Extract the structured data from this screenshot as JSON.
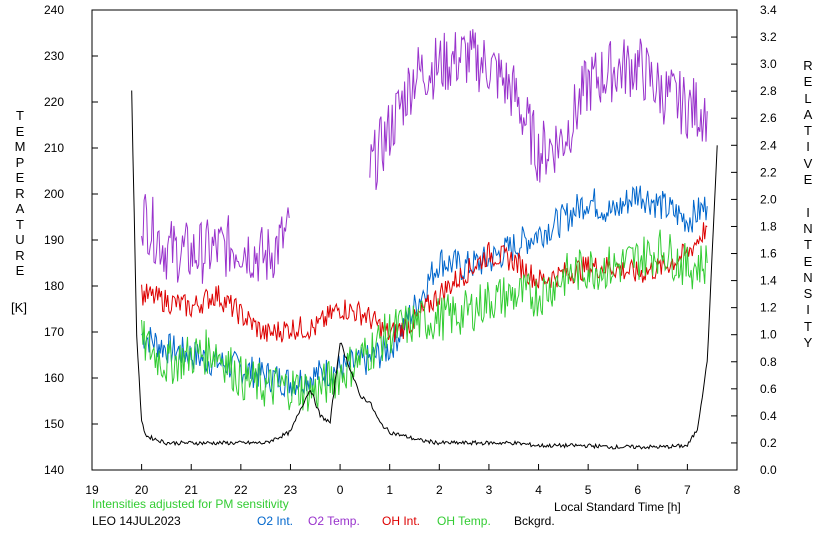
{
  "chart_data": {
    "type": "line",
    "xlabel": "Local Standard Time [h]",
    "ylabel_left_letters": [
      "T",
      "E",
      "M",
      "P",
      "E",
      "R",
      "A",
      "T",
      "U",
      "R",
      "E"
    ],
    "ylabel_left_unit": "[K]",
    "ylabel_right_letters": [
      "R",
      "E",
      "L",
      "A",
      "T",
      "I",
      "V",
      "E",
      "",
      "I",
      "N",
      "T",
      "E",
      "N",
      "S",
      "I",
      "T",
      "Y"
    ],
    "xlim": [
      19,
      32
    ],
    "x_tick_values": [
      19,
      20,
      21,
      22,
      23,
      24,
      25,
      26,
      27,
      28,
      29,
      30,
      31,
      32
    ],
    "x_tick_labels": [
      "19",
      "20",
      "21",
      "22",
      "23",
      "0",
      "1",
      "2",
      "3",
      "4",
      "5",
      "6",
      "7",
      "8"
    ],
    "ylim_left": [
      140,
      240
    ],
    "y_left_ticks": [
      "140",
      "150",
      "160",
      "170",
      "180",
      "190",
      "200",
      "210",
      "220",
      "230",
      "240"
    ],
    "ylim_right": [
      0,
      3.4
    ],
    "y_right_ticks": [
      "0.0",
      "0.2",
      "0.4",
      "0.6",
      "0.8",
      "1.0",
      "1.2",
      "1.4",
      "1.6",
      "1.8",
      "2.0",
      "2.2",
      "2.4",
      "2.6",
      "2.8",
      "3.0",
      "3.2",
      "3.4"
    ],
    "note": "Intensities adjusted for PM sensitivity",
    "station": "LEO 14JUL2023",
    "series": [
      {
        "name": "O2 Int.",
        "axis": "right",
        "color": "#0066cc",
        "x": [
          20.0,
          20.5,
          21.0,
          21.5,
          22.0,
          22.5,
          23.0,
          23.5,
          24.0,
          24.5,
          25.0,
          25.5,
          26.0,
          26.5,
          27.0,
          27.5,
          28.0,
          28.5,
          29.0,
          29.5,
          30.0,
          30.5,
          31.0,
          31.4
        ],
        "y": [
          1.0,
          0.9,
          0.85,
          0.8,
          0.75,
          0.7,
          0.65,
          0.7,
          0.75,
          0.8,
          0.9,
          1.2,
          1.55,
          1.5,
          1.55,
          1.65,
          1.75,
          1.85,
          2.0,
          1.9,
          2.05,
          1.95,
          1.85,
          1.95
        ]
      },
      {
        "name": "O2 Temp.",
        "axis": "left",
        "color": "#9933cc",
        "x": [
          20.0,
          20.5,
          21.0,
          21.5,
          22.0,
          22.5,
          23.0,
          23.6,
          24.0,
          24.3,
          24.6,
          25.0,
          25.5,
          26.0,
          26.5,
          27.0,
          27.5,
          28.0,
          28.5,
          29.0,
          29.5,
          30.0,
          30.5,
          31.0,
          31.4
        ],
        "y": [
          196,
          188,
          187,
          188,
          189,
          186,
          192,
          null,
          205,
          null,
          205,
          214,
          226,
          228,
          230,
          228,
          222,
          209,
          212,
          224,
          227,
          228,
          222,
          219,
          218
        ]
      },
      {
        "name": "OH Int.",
        "axis": "right",
        "color": "#dd0000",
        "x": [
          20.0,
          20.5,
          21.0,
          21.5,
          22.0,
          22.5,
          23.0,
          23.5,
          24.0,
          24.5,
          25.0,
          25.5,
          26.0,
          26.5,
          27.0,
          27.5,
          28.0,
          28.5,
          29.0,
          29.5,
          30.0,
          30.5,
          31.0,
          31.4
        ],
        "y": [
          1.3,
          1.25,
          1.2,
          1.3,
          1.15,
          1.0,
          1.05,
          1.05,
          1.2,
          1.15,
          1.0,
          1.1,
          1.3,
          1.45,
          1.6,
          1.55,
          1.4,
          1.45,
          1.5,
          1.5,
          1.45,
          1.5,
          1.6,
          1.8
        ]
      },
      {
        "name": "OH Temp.",
        "axis": "left",
        "color": "#33cc33",
        "x": [
          20.0,
          20.5,
          21.0,
          21.5,
          22.0,
          22.5,
          23.0,
          23.5,
          24.0,
          24.5,
          25.0,
          25.5,
          26.0,
          26.5,
          27.0,
          27.5,
          28.0,
          28.5,
          29.0,
          29.5,
          30.0,
          30.5,
          31.0,
          31.4
        ],
        "y": [
          168,
          163,
          165,
          166,
          160,
          158,
          158,
          157,
          161,
          165,
          170,
          172,
          173,
          174,
          177,
          178,
          178,
          182,
          184,
          184,
          186,
          188,
          184,
          185
        ]
      },
      {
        "name": "Bckgrd.",
        "axis": "right",
        "color": "#000000",
        "x": [
          19.8,
          19.9,
          20.0,
          20.1,
          20.5,
          21.0,
          21.5,
          22.0,
          22.5,
          23.0,
          23.2,
          23.4,
          23.6,
          23.8,
          24.0,
          24.2,
          24.4,
          24.6,
          24.8,
          25.0,
          25.3,
          25.6,
          26.0,
          26.5,
          27.0,
          27.5,
          28.0,
          28.5,
          29.0,
          29.5,
          30.0,
          30.5,
          31.0,
          31.2,
          31.4,
          31.6
        ],
        "y": [
          2.8,
          1.0,
          0.35,
          0.25,
          0.2,
          0.2,
          0.2,
          0.2,
          0.2,
          0.28,
          0.45,
          0.6,
          0.4,
          0.35,
          0.95,
          0.75,
          0.55,
          0.5,
          0.35,
          0.28,
          0.25,
          0.22,
          0.2,
          0.2,
          0.2,
          0.2,
          0.18,
          0.18,
          0.18,
          0.17,
          0.17,
          0.17,
          0.18,
          0.3,
          0.8,
          2.4
        ]
      }
    ]
  }
}
